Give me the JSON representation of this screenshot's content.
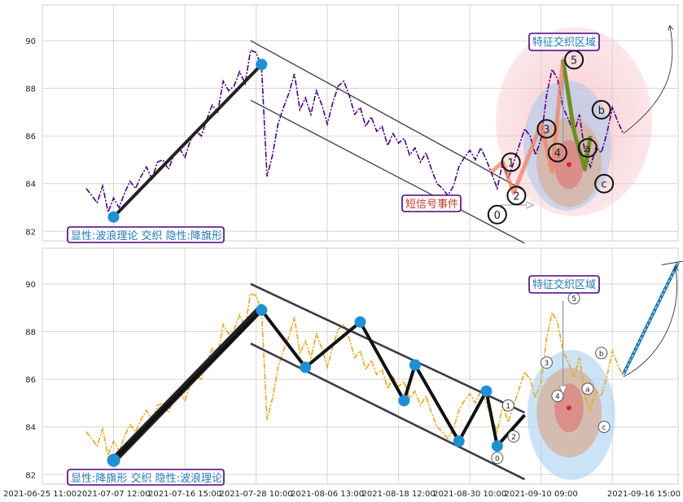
{
  "chart_data": [
    {
      "type": "line",
      "panel": "top",
      "title": "",
      "ylim": [
        81.6,
        91.5
      ],
      "yticks": [
        82,
        84,
        86,
        88,
        90
      ],
      "grid": true,
      "price_color": "#4b0082",
      "price": [
        [
          0,
          83.8
        ],
        [
          1,
          83.5
        ],
        [
          2,
          83.2
        ],
        [
          3,
          83.9
        ],
        [
          4,
          82.8
        ],
        [
          5,
          83.4
        ],
        [
          6,
          83.0
        ],
        [
          7,
          83.6
        ],
        [
          8,
          84.1
        ],
        [
          9,
          83.8
        ],
        [
          10,
          84.3
        ],
        [
          11,
          84.7
        ],
        [
          12,
          84.2
        ],
        [
          13,
          84.9
        ],
        [
          14,
          85.0
        ],
        [
          15,
          84.6
        ],
        [
          16,
          85.2
        ],
        [
          17,
          85.5
        ],
        [
          18,
          85.1
        ],
        [
          19,
          85.8
        ],
        [
          20,
          86.2
        ],
        [
          21,
          86.0
        ],
        [
          22,
          86.7
        ],
        [
          23,
          87.3
        ],
        [
          24,
          87.0
        ],
        [
          25,
          88.3
        ],
        [
          26,
          87.9
        ],
        [
          27,
          88.1
        ],
        [
          28,
          88.7
        ],
        [
          29,
          88.2
        ],
        [
          30,
          89.6
        ],
        [
          31,
          89.5
        ],
        [
          32,
          88.9
        ],
        [
          33,
          84.3
        ],
        [
          34,
          85.2
        ],
        [
          35,
          86.5
        ],
        [
          36,
          87.2
        ],
        [
          37,
          87.8
        ],
        [
          38,
          88.6
        ],
        [
          39,
          87.1
        ],
        [
          40,
          87.6
        ],
        [
          41,
          86.9
        ],
        [
          42,
          87.9
        ],
        [
          43,
          87.3
        ],
        [
          44,
          86.5
        ],
        [
          45,
          87.4
        ],
        [
          46,
          88.1
        ],
        [
          47,
          88.3
        ],
        [
          48,
          87.7
        ],
        [
          49,
          86.9
        ],
        [
          50,
          87.2
        ],
        [
          51,
          86.4
        ],
        [
          52,
          86.8
        ],
        [
          53,
          86.2
        ],
        [
          54,
          86.4
        ],
        [
          55,
          85.6
        ],
        [
          56,
          86.1
        ],
        [
          57,
          85.7
        ],
        [
          58,
          85.9
        ],
        [
          59,
          85.2
        ],
        [
          60,
          85.5
        ],
        [
          61,
          84.9
        ],
        [
          62,
          85.3
        ],
        [
          63,
          84.6
        ],
        [
          64,
          84.0
        ],
        [
          65,
          83.8
        ],
        [
          66,
          83.5
        ],
        [
          67,
          83.9
        ],
        [
          68,
          84.7
        ],
        [
          69,
          85.1
        ],
        [
          70,
          85.4
        ],
        [
          71,
          85.0
        ],
        [
          72,
          85.5
        ],
        [
          73,
          85.0
        ],
        [
          74,
          84.4
        ],
        [
          75,
          83.8
        ],
        [
          76,
          84.9
        ],
        [
          77,
          84.2
        ],
        [
          78,
          84.9
        ],
        [
          79,
          85.6
        ],
        [
          80,
          86.3
        ],
        [
          81,
          86.0
        ],
        [
          82,
          85.2
        ],
        [
          83,
          85.9
        ],
        [
          84,
          87.7
        ],
        [
          85,
          88.8
        ],
        [
          86,
          88.4
        ],
        [
          87,
          87.2
        ],
        [
          88,
          86.7
        ],
        [
          89,
          86.1
        ],
        [
          90,
          86.9
        ],
        [
          91,
          85.3
        ],
        [
          92,
          84.7
        ],
        [
          93,
          85.5
        ],
        [
          94,
          85.3
        ],
        [
          95,
          86.1
        ],
        [
          96,
          87.2
        ],
        [
          97,
          86.6
        ],
        [
          98,
          86.1
        ]
      ],
      "trend_line": [
        [
          5,
          82.6
        ],
        [
          32,
          89.0
        ]
      ],
      "trend_points": [
        [
          5,
          82.6
        ],
        [
          32,
          89.0
        ]
      ],
      "channel_upper": [
        [
          30,
          90.0
        ],
        [
          80,
          83.7
        ]
      ],
      "channel_lower": [
        [
          30,
          87.5
        ],
        [
          80,
          81.5
        ]
      ],
      "wave_path": [
        [
          74,
          84.5
        ],
        [
          76,
          84.9
        ],
        [
          78,
          83.6
        ],
        [
          83,
          86.5
        ],
        [
          85,
          84.5
        ],
        [
          87,
          89.2
        ],
        [
          89,
          86.2
        ],
        [
          91,
          84.6
        ],
        [
          92,
          86.0
        ]
      ],
      "wave_labels": [
        {
          "label": "0",
          "x": 75,
          "y": 82.7
        },
        {
          "label": "1",
          "x": 77.5,
          "y": 84.9
        },
        {
          "label": "2",
          "x": 78.5,
          "y": 83.5
        },
        {
          "label": "3",
          "x": 84,
          "y": 86.3
        },
        {
          "label": "4",
          "x": 86,
          "y": 85.3
        },
        {
          "label": "5",
          "x": 89,
          "y": 89.2
        },
        {
          "label": "a",
          "x": 91.5,
          "y": 85.5
        },
        {
          "label": "b",
          "x": 94,
          "y": 87.1
        },
        {
          "label": "c",
          "x": 94.5,
          "y": 84.0
        }
      ],
      "explicit_label": "显性:波浪理论 交织 隐性:降旗形",
      "zone_label": "特征交织区域",
      "signal_label": "短信号事件"
    },
    {
      "type": "line",
      "panel": "bottom",
      "title": "",
      "ylim": [
        81.6,
        91.5
      ],
      "yticks": [
        82,
        84,
        86,
        88,
        90
      ],
      "grid": true,
      "price_color": "#e5a81e",
      "trend_line": [
        [
          5,
          82.6
        ],
        [
          32,
          89.0
        ]
      ],
      "zigzag": [
        [
          5,
          82.6
        ],
        [
          32,
          88.9
        ],
        [
          40,
          86.5
        ],
        [
          50,
          88.4
        ],
        [
          58,
          85.1
        ],
        [
          60,
          86.6
        ],
        [
          68,
          83.4
        ],
        [
          73,
          85.5
        ],
        [
          75,
          83.2
        ],
        [
          80,
          84.5
        ]
      ],
      "zigzag_points": [
        [
          5,
          82.6
        ],
        [
          32,
          88.9
        ],
        [
          40,
          86.5
        ],
        [
          50,
          88.4
        ],
        [
          58,
          85.1
        ],
        [
          60,
          86.6
        ],
        [
          68,
          83.4
        ],
        [
          73,
          85.5
        ],
        [
          75,
          83.2
        ]
      ],
      "channel_upper": [
        [
          30,
          90.0
        ],
        [
          80,
          84.6
        ]
      ],
      "channel_lower": [
        [
          30,
          87.5
        ],
        [
          80,
          81.8
        ]
      ],
      "wave_labels": [
        {
          "label": "0",
          "x": 75,
          "y": 82.7
        },
        {
          "label": "1",
          "x": 77,
          "y": 84.9
        },
        {
          "label": "2",
          "x": 78,
          "y": 83.6
        },
        {
          "label": "3",
          "x": 84,
          "y": 86.7
        },
        {
          "label": "4",
          "x": 86,
          "y": 85.3
        },
        {
          "label": "5",
          "x": 89,
          "y": 89.4
        },
        {
          "label": "a",
          "x": 91.5,
          "y": 85.6
        },
        {
          "label": "b",
          "x": 94,
          "y": 87.1
        },
        {
          "label": "c",
          "x": 94.5,
          "y": 84.0
        }
      ],
      "forecast": [
        [
          98,
          86.2
        ],
        [
          108,
          90.9
        ]
      ],
      "explicit_label": "显性:降旗形 交织 隐性:波浪理论",
      "zone_label": "特征交织区域"
    }
  ],
  "xaxis": {
    "range": [
      -8,
      108
    ],
    "ticks": [
      {
        "x": -8,
        "label": "2021-06-25 11:00"
      },
      {
        "x": 5,
        "label": "2021-07-07 12:00"
      },
      {
        "x": 18,
        "label": "2021-07-16 15:00"
      },
      {
        "x": 31,
        "label": "2021-07-28 10:00"
      },
      {
        "x": 44,
        "label": "2021-08-06 13:00"
      },
      {
        "x": 57,
        "label": "2021-08-18 12:00"
      },
      {
        "x": 70,
        "label": "2021-08-30 10:00"
      },
      {
        "x": 83,
        "label": "2021-09-10 09:00"
      },
      {
        "x": 96,
        "label": "2021-09-16 15:00"
      }
    ]
  }
}
